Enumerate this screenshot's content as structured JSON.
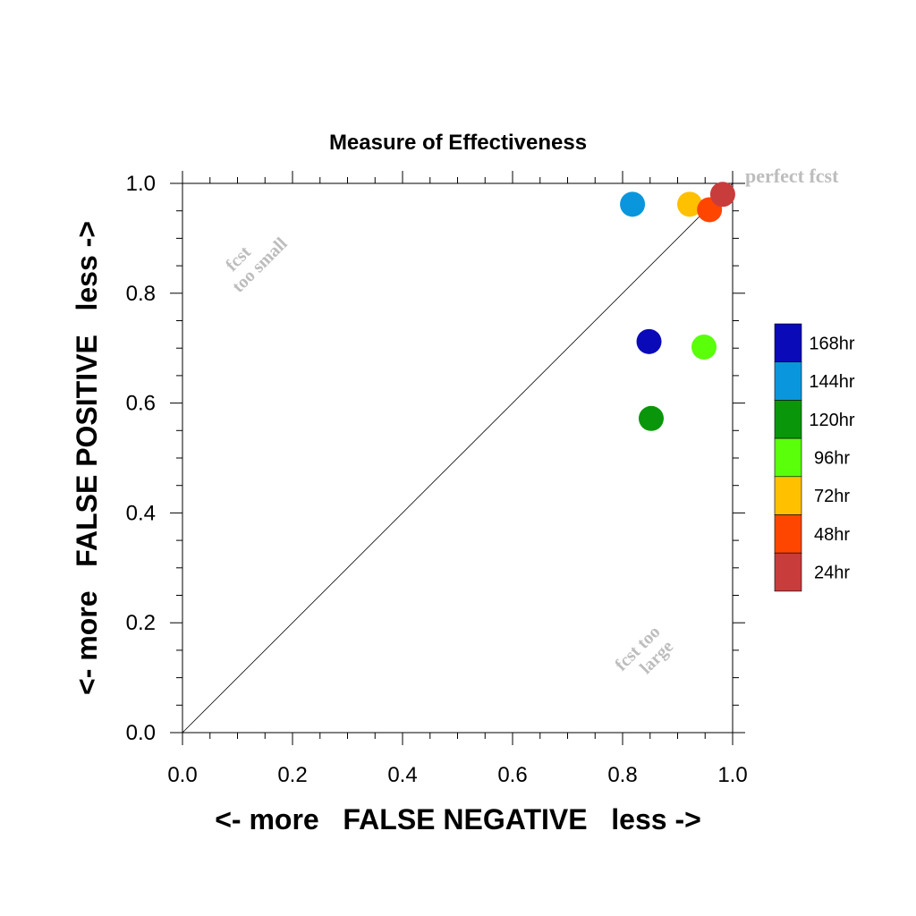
{
  "chart_data": {
    "type": "scatter",
    "title": "Measure of Effectiveness",
    "xlabel": "<- more   FALSE NEGATIVE   less ->",
    "ylabel": "<- more   FALSE POSITIVE   less ->",
    "xlim": [
      0,
      1
    ],
    "ylim": [
      0,
      1
    ],
    "xticks": [
      "0.0",
      "0.2",
      "0.4",
      "0.6",
      "0.8",
      "1.0"
    ],
    "yticks": [
      "0.0",
      "0.2",
      "0.4",
      "0.6",
      "0.8",
      "1.0"
    ],
    "xtick_values": [
      0,
      0.2,
      0.4,
      0.6,
      0.8,
      1.0
    ],
    "ytick_values": [
      0,
      0.2,
      0.4,
      0.6,
      0.8,
      1.0
    ],
    "grid": false,
    "reference_line": "diagonal",
    "legend_position": "right",
    "annotations": {
      "perfect": "perfect fcst",
      "too_small_1": "fcst",
      "too_small_2": "too small",
      "too_large_1": "fcst too",
      "too_large_2": "large"
    },
    "series": [
      {
        "name": "168hr",
        "color": "#0a0ab8",
        "x": 0.848,
        "y": 0.712
      },
      {
        "name": "144hr",
        "color": "#0a96dc",
        "x": 0.818,
        "y": 0.962
      },
      {
        "name": "120hr",
        "color": "#0a960a",
        "x": 0.852,
        "y": 0.572
      },
      {
        "name": "96hr",
        "color": "#5aff0a",
        "x": 0.948,
        "y": 0.702
      },
      {
        "name": "72hr",
        "color": "#ffc000",
        "x": 0.922,
        "y": 0.962
      },
      {
        "name": "48hr",
        "color": "#ff4600",
        "x": 0.958,
        "y": 0.952
      },
      {
        "name": "24hr",
        "color": "#c83c3c",
        "x": 0.982,
        "y": 0.98
      }
    ]
  }
}
